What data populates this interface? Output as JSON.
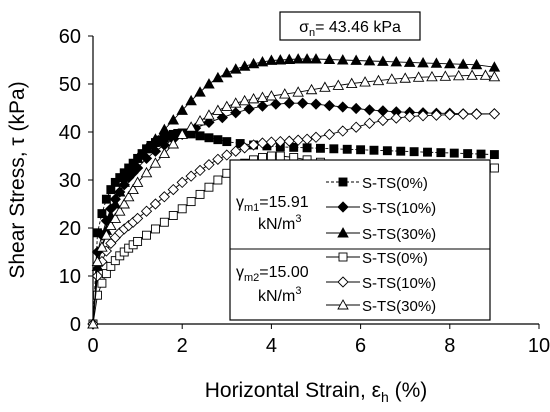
{
  "chart_data": {
    "type": "scatter",
    "title": "σn= 43.46 kPa",
    "title_parts": {
      "symbol": "σ",
      "sub": "n",
      "rest": "= 43.46 kPa"
    },
    "xlabel": "Horizontal Strain, εh (%)",
    "xlabel_parts": {
      "main": "Horizontal Strain, ε",
      "sub": "h",
      "tail": " (%)"
    },
    "ylabel": "Shear Stress, τ (kPa)",
    "xlim": [
      0,
      10
    ],
    "ylim": [
      0,
      60
    ],
    "xticks": [
      0,
      2,
      4,
      6,
      8,
      10
    ],
    "yticks": [
      0,
      10,
      20,
      30,
      40,
      50,
      60
    ],
    "grid": false,
    "legend_position": "bottom-right",
    "legend_groups": [
      {
        "label_main": "γ",
        "label_sub": "m1",
        "label_rest": "=15.91",
        "unit_main": "kN/m",
        "unit_sup": "3"
      },
      {
        "label_main": "γ",
        "label_sub": "m2",
        "label_rest": "=15.00",
        "unit_main": "kN/m",
        "unit_sup": "3"
      }
    ],
    "series": [
      {
        "name": "S-TS(0%)",
        "group": 0,
        "marker": "square",
        "filled": true,
        "dashed": true,
        "x": [
          0,
          0.1,
          0.2,
          0.3,
          0.4,
          0.5,
          0.6,
          0.7,
          0.8,
          0.9,
          1.0,
          1.1,
          1.2,
          1.3,
          1.4,
          1.5,
          1.6,
          1.7,
          1.8,
          1.9,
          2.0,
          2.1,
          2.2,
          2.4,
          2.6,
          2.8,
          3.0,
          3.3,
          3.6,
          3.9,
          4.2,
          4.5,
          4.8,
          5.1,
          5.4,
          5.7,
          6.0,
          6.3,
          6.6,
          6.9,
          7.2,
          7.5,
          7.8,
          8.1,
          8.4,
          8.7,
          9.0
        ],
        "y": [
          0,
          19,
          23,
          26,
          28,
          29.5,
          30.5,
          31.5,
          32.5,
          33.5,
          34.5,
          35.5,
          36.5,
          37.2,
          37.8,
          38.3,
          38.8,
          39.2,
          39.5,
          39.7,
          39.8,
          39.8,
          39.6,
          39.2,
          38.8,
          38.4,
          38.0,
          37.6,
          37.3,
          37.1,
          36.9,
          36.8,
          36.7,
          36.6,
          36.5,
          36.4,
          36.3,
          36.2,
          36.1,
          36.0,
          35.9,
          35.8,
          35.7,
          35.6,
          35.5,
          35.4,
          35.3
        ]
      },
      {
        "name": "S-TS(10%)",
        "group": 0,
        "marker": "diamond",
        "filled": true,
        "dashed": false,
        "x": [
          0,
          0.1,
          0.2,
          0.3,
          0.4,
          0.5,
          0.6,
          0.7,
          0.8,
          0.9,
          1.0,
          1.2,
          1.4,
          1.6,
          1.8,
          2.0,
          2.3,
          2.6,
          2.9,
          3.2,
          3.5,
          3.8,
          4.1,
          4.4,
          4.7,
          5.0,
          5.3,
          5.6,
          5.9,
          6.2,
          6.5,
          6.8,
          7.1,
          7.4,
          7.7,
          8.0,
          8.3,
          8.6,
          9.0
        ],
        "y": [
          0,
          15,
          18.5,
          21.5,
          24,
          26,
          27.5,
          29,
          30.5,
          31.5,
          32.5,
          34.5,
          36,
          37.3,
          38.5,
          39.5,
          40.8,
          42,
          43,
          44,
          44.8,
          45.4,
          45.8,
          46,
          46,
          45.8,
          45.5,
          45.2,
          44.9,
          44.6,
          44.4,
          44.2,
          44.1,
          44,
          43.9,
          43.9,
          43.8,
          43.8,
          43.8
        ]
      },
      {
        "name": "S-TS(30%)",
        "group": 0,
        "marker": "triangle",
        "filled": true,
        "dashed": false,
        "x": [
          0,
          0.1,
          0.2,
          0.3,
          0.4,
          0.5,
          0.6,
          0.7,
          0.8,
          0.9,
          1.0,
          1.2,
          1.4,
          1.6,
          1.8,
          2.0,
          2.2,
          2.4,
          2.6,
          2.8,
          3.0,
          3.2,
          3.4,
          3.6,
          3.8,
          4.0,
          4.2,
          4.4,
          4.6,
          4.8,
          5.0,
          5.3,
          5.6,
          5.9,
          6.2,
          6.5,
          6.8,
          7.1,
          7.4,
          7.7,
          8.0,
          8.3,
          8.6,
          9.0
        ],
        "y": [
          0,
          12,
          16,
          19.5,
          22.5,
          25,
          27.5,
          29.5,
          31.5,
          33,
          34.5,
          36.5,
          38.5,
          40.5,
          42.5,
          44.5,
          46.5,
          48.3,
          50,
          51.3,
          52.3,
          53.1,
          53.7,
          54.2,
          54.6,
          54.9,
          55,
          55.1,
          55.2,
          55.2,
          55.2,
          55.1,
          55,
          54.9,
          54.8,
          54.7,
          54.6,
          54.5,
          54.4,
          54.3,
          54.2,
          54.1,
          54,
          53.5
        ]
      },
      {
        "name": "S-TS(0%)",
        "group": 1,
        "marker": "square",
        "filled": false,
        "dashed": false,
        "x": [
          0,
          0.1,
          0.2,
          0.3,
          0.4,
          0.5,
          0.6,
          0.7,
          0.8,
          0.9,
          1.0,
          1.2,
          1.4,
          1.6,
          1.8,
          2.0,
          2.2,
          2.4,
          2.6,
          2.8,
          3.0,
          3.2,
          3.4,
          3.6,
          3.8,
          4.0,
          4.2,
          4.5,
          4.8,
          5.1,
          5.4,
          5.7,
          6.0,
          6.3,
          6.6,
          6.9,
          7.2,
          7.5,
          7.8,
          8.1,
          8.4,
          8.7,
          9.0
        ],
        "y": [
          0,
          6,
          8.5,
          10.5,
          12,
          13.2,
          14.2,
          15,
          15.8,
          16.5,
          17.2,
          18.5,
          19.8,
          21.2,
          22.6,
          24,
          25.5,
          27,
          28.5,
          30,
          31.4,
          32.6,
          33.5,
          34.2,
          34.7,
          35,
          35,
          34.7,
          34.2,
          33.7,
          33.3,
          33,
          32.8,
          32.6,
          32.5,
          32.4,
          32.4,
          32.3,
          32.3,
          32.3,
          32.3,
          32.4,
          32.5
        ]
      },
      {
        "name": "S-TS(10%)",
        "group": 1,
        "marker": "diamond",
        "filled": false,
        "dashed": false,
        "x": [
          0,
          0.1,
          0.2,
          0.3,
          0.4,
          0.5,
          0.6,
          0.7,
          0.8,
          0.9,
          1.0,
          1.2,
          1.4,
          1.6,
          1.8,
          2.0,
          2.2,
          2.4,
          2.6,
          2.8,
          3.0,
          3.2,
          3.4,
          3.6,
          3.8,
          4.0,
          4.2,
          4.4,
          4.6,
          4.8,
          5.0,
          5.3,
          5.6,
          5.9,
          6.2,
          6.5,
          6.8,
          7.1,
          7.4,
          7.7,
          8.0,
          8.3,
          8.6,
          9.0
        ],
        "y": [
          0,
          10,
          13,
          15.2,
          16.8,
          18,
          19,
          19.8,
          20.5,
          21.2,
          22,
          23.5,
          25,
          26.5,
          28,
          29.5,
          30.8,
          32,
          33.2,
          34.3,
          35.2,
          36,
          36.7,
          37.3,
          37.7,
          37.9,
          38,
          38.1,
          38.3,
          38.5,
          38.9,
          39.5,
          40.2,
          41,
          41.8,
          42.4,
          42.9,
          43.2,
          43.4,
          43.5,
          43.6,
          43.7,
          43.7,
          43.8
        ]
      },
      {
        "name": "S-TS(30%)",
        "group": 1,
        "marker": "triangle",
        "filled": false,
        "dashed": false,
        "x": [
          0,
          0.1,
          0.2,
          0.3,
          0.4,
          0.5,
          0.6,
          0.7,
          0.8,
          0.9,
          1.0,
          1.2,
          1.4,
          1.6,
          1.8,
          2.0,
          2.2,
          2.4,
          2.6,
          2.8,
          3.0,
          3.2,
          3.4,
          3.6,
          3.8,
          4.0,
          4.3,
          4.6,
          4.9,
          5.2,
          5.5,
          5.8,
          6.1,
          6.4,
          6.7,
          7.0,
          7.3,
          7.6,
          7.9,
          8.2,
          8.5,
          8.8,
          9.0
        ],
        "y": [
          0,
          13,
          16,
          18.5,
          20.5,
          22,
          23.5,
          25,
          26.5,
          28,
          29.5,
          31.5,
          33.5,
          35.5,
          37.5,
          39.5,
          41,
          42.3,
          43.5,
          44.5,
          45.3,
          46,
          46.5,
          46.9,
          47.2,
          47.5,
          47.9,
          48.3,
          48.8,
          49.3,
          49.7,
          50.1,
          50.4,
          50.7,
          51,
          51.2,
          51.4,
          51.5,
          51.6,
          51.7,
          51.8,
          51.8,
          51.5
        ]
      }
    ]
  }
}
